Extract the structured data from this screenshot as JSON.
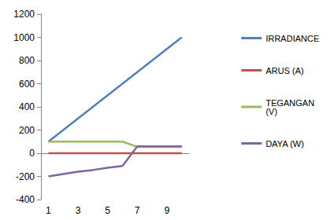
{
  "chart_data": {
    "type": "line",
    "categories": [
      "1",
      null,
      "3",
      null,
      "5",
      null,
      "7",
      null,
      "9",
      null
    ],
    "series": [
      {
        "name": "IRRADIANCE",
        "color": "#4f81bd",
        "values": [
          100,
          200,
          300,
          400,
          500,
          600,
          700,
          800,
          900,
          1000
        ]
      },
      {
        "name": "ARUS (A)",
        "color": "#c0504d",
        "values": [
          0,
          0,
          0,
          0,
          0,
          0,
          0,
          0,
          0,
          0
        ]
      },
      {
        "name": "TEGANGAN (V)",
        "color": "#9bbb59",
        "values": [
          100,
          100,
          100,
          100,
          100,
          100,
          55,
          55,
          55,
          55
        ]
      },
      {
        "name": "DAYA (W)",
        "color": "#8064a2",
        "values": [
          -200,
          -180,
          -160,
          -145,
          -125,
          -110,
          60,
          60,
          60,
          60
        ]
      }
    ],
    "ylim": [
      -400,
      1200
    ],
    "yticks": [
      -400,
      -200,
      0,
      200,
      400,
      600,
      800,
      1000,
      1200
    ],
    "grid": false,
    "legend": "right",
    "marker": "none"
  }
}
